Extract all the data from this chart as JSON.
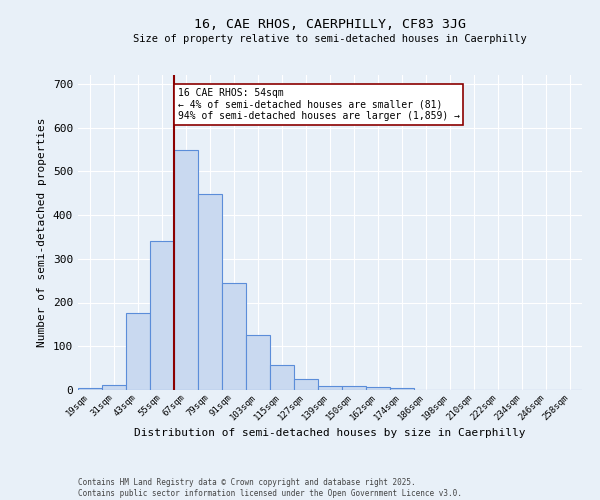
{
  "title": "16, CAE RHOS, CAERPHILLY, CF83 3JG",
  "subtitle": "Size of property relative to semi-detached houses in Caerphilly",
  "xlabel": "Distribution of semi-detached houses by size in Caerphilly",
  "ylabel": "Number of semi-detached properties",
  "bin_labels": [
    "19sqm",
    "31sqm",
    "43sqm",
    "55sqm",
    "67sqm",
    "79sqm",
    "91sqm",
    "103sqm",
    "115sqm",
    "127sqm",
    "139sqm",
    "150sqm",
    "162sqm",
    "174sqm",
    "186sqm",
    "198sqm",
    "210sqm",
    "222sqm",
    "234sqm",
    "246sqm",
    "258sqm"
  ],
  "bar_values": [
    5,
    12,
    175,
    340,
    548,
    448,
    245,
    125,
    58,
    25,
    10,
    10,
    7,
    4,
    0,
    0,
    0,
    0,
    0,
    0,
    0
  ],
  "bar_color": "#c9d9f0",
  "bar_edge_color": "#5b8dd9",
  "vline_x": 3.5,
  "vline_color": "#8b0000",
  "annotation_text": "16 CAE RHOS: 54sqm\n← 4% of semi-detached houses are smaller (81)\n94% of semi-detached houses are larger (1,859) →",
  "annotation_box_color": "#ffffff",
  "annotation_box_edge": "#8b0000",
  "ylim": [
    0,
    720
  ],
  "yticks": [
    0,
    100,
    200,
    300,
    400,
    500,
    600,
    700
  ],
  "bg_color": "#e8f0f8",
  "grid_color": "#ffffff",
  "footnote": "Contains HM Land Registry data © Crown copyright and database right 2025.\nContains public sector information licensed under the Open Government Licence v3.0."
}
